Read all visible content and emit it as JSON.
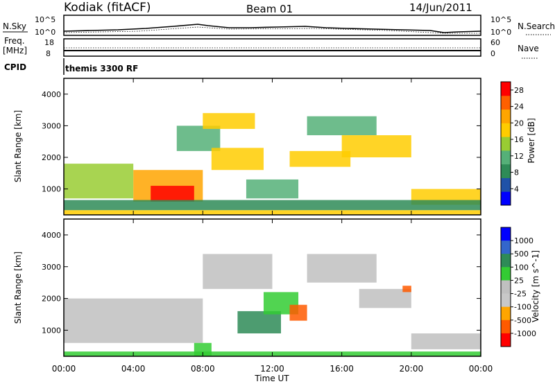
{
  "header": {
    "station": "Kodiak (fitACF)",
    "beam": "Beam 01",
    "date": "14/Jun/2011"
  },
  "top_panels": {
    "nsky_label": "N.Sky",
    "nsearch_label": "N.Search",
    "nsky_ticks": [
      "10^5",
      "10^0"
    ],
    "nsearch_ticks": [
      "10^5",
      "10^0"
    ],
    "freq_label": "Freq.",
    "freq_unit": "[MHz]",
    "freq_ticks": [
      "18",
      "8"
    ],
    "nave_label": "Nave",
    "nave_ticks": [
      "60",
      "0"
    ],
    "cpid_label": "CPID",
    "cpid_value": "themis 3300 RF"
  },
  "colors": {
    "power_scale": [
      "#0000ff",
      "#1f52a8",
      "#2e8b57",
      "#55b078",
      "#99cc33",
      "#ffcc00",
      "#ffa500",
      "#ff6000",
      "#ff0000"
    ],
    "velocity_scale": [
      "#ff0000",
      "#ff5a00",
      "#ffa500",
      "#c8c8c8",
      "#c0c0c0",
      "#33cc33",
      "#2e8b57",
      "#3366cc",
      "#0000ff"
    ],
    "ground_scatter": "#c0c0c0"
  },
  "chart_data": [
    {
      "type": "heatmap",
      "title": "",
      "xlabel": "Time UT",
      "ylabel": "Slant Range [km]",
      "x_ticks": [
        "00:00",
        "04:00",
        "08:00",
        "12:00",
        "16:00",
        "20:00",
        "00:00"
      ],
      "y_ticks": [
        "1000",
        "2000",
        "3000",
        "4000"
      ],
      "xlim_hours": [
        0,
        24
      ],
      "ylim_km": [
        180,
        4500
      ],
      "colorbar": {
        "label": "Power [dB]",
        "ticks": [
          "4",
          "8",
          "12",
          "16",
          "20",
          "24",
          "28"
        ],
        "range": [
          0,
          30
        ]
      },
      "regions": [
        {
          "start_h": 0.0,
          "end_h": 24.0,
          "range_lo": 190,
          "range_hi": 330,
          "value": 18
        },
        {
          "start_h": 0.0,
          "end_h": 4.0,
          "range_lo": 700,
          "range_hi": 1800,
          "value": 15
        },
        {
          "start_h": 4.0,
          "end_h": 8.0,
          "range_lo": 600,
          "range_hi": 1600,
          "value": 23
        },
        {
          "start_h": 5.0,
          "end_h": 7.5,
          "range_lo": 600,
          "range_hi": 1100,
          "value": 27
        },
        {
          "start_h": 6.5,
          "end_h": 9.0,
          "range_lo": 2200,
          "range_hi": 3000,
          "value": 12
        },
        {
          "start_h": 8.0,
          "end_h": 11.0,
          "range_lo": 2900,
          "range_hi": 3400,
          "value": 17
        },
        {
          "start_h": 8.5,
          "end_h": 11.5,
          "range_lo": 1600,
          "range_hi": 2300,
          "value": 19
        },
        {
          "start_h": 10.5,
          "end_h": 13.5,
          "range_lo": 700,
          "range_hi": 1300,
          "value": 13
        },
        {
          "start_h": 13.0,
          "end_h": 16.5,
          "range_lo": 1700,
          "range_hi": 2200,
          "value": 18
        },
        {
          "start_h": 14.0,
          "end_h": 18.0,
          "range_lo": 2700,
          "range_hi": 3300,
          "value": 11
        },
        {
          "start_h": 16.0,
          "end_h": 20.0,
          "range_lo": 2000,
          "range_hi": 2700,
          "value": 17
        },
        {
          "start_h": 20.0,
          "end_h": 24.0,
          "range_lo": 500,
          "range_hi": 1000,
          "value": 19
        },
        {
          "start_h": 0.0,
          "end_h": 24.0,
          "range_lo": 330,
          "range_hi": 650,
          "value": 9
        }
      ]
    },
    {
      "type": "heatmap",
      "title": "",
      "xlabel": "Time UT",
      "ylabel": "Slant Range [km]",
      "x_ticks": [
        "00:00",
        "04:00",
        "08:00",
        "12:00",
        "16:00",
        "20:00",
        "00:00"
      ],
      "y_ticks": [
        "1000",
        "2000",
        "3000",
        "4000"
      ],
      "xlim_hours": [
        0,
        24
      ],
      "ylim_km": [
        180,
        4500
      ],
      "colorbar": {
        "label": "Velocity [m s^-1]",
        "ticks": [
          "1000",
          "500",
          "100",
          "25",
          "-25",
          "-100",
          "-500",
          "-1000"
        ]
      },
      "regions": [
        {
          "start_h": 0.0,
          "end_h": 24.0,
          "range_lo": 190,
          "range_hi": 330,
          "value": 60
        },
        {
          "start_h": 0.0,
          "end_h": 8.0,
          "range_lo": 600,
          "range_hi": 2000,
          "value": 0
        },
        {
          "start_h": 8.0,
          "end_h": 12.0,
          "range_lo": 2300,
          "range_hi": 3400,
          "value": 0
        },
        {
          "start_h": 10.0,
          "end_h": 12.5,
          "range_lo": 900,
          "range_hi": 1600,
          "value": 120
        },
        {
          "start_h": 11.5,
          "end_h": 13.5,
          "range_lo": 1500,
          "range_hi": 2200,
          "value": 80
        },
        {
          "start_h": 13.0,
          "end_h": 14.0,
          "range_lo": 1300,
          "range_hi": 1800,
          "value": -150
        },
        {
          "start_h": 14.0,
          "end_h": 18.0,
          "range_lo": 2500,
          "range_hi": 3400,
          "value": 0
        },
        {
          "start_h": 17.0,
          "end_h": 20.0,
          "range_lo": 1700,
          "range_hi": 2300,
          "value": 0
        },
        {
          "start_h": 19.5,
          "end_h": 20.0,
          "range_lo": 2200,
          "range_hi": 2400,
          "value": -200
        },
        {
          "start_h": 20.0,
          "end_h": 24.0,
          "range_lo": 400,
          "range_hi": 900,
          "value": 0
        },
        {
          "start_h": 7.5,
          "end_h": 8.5,
          "range_lo": 200,
          "range_hi": 600,
          "value": 40
        }
      ]
    }
  ]
}
